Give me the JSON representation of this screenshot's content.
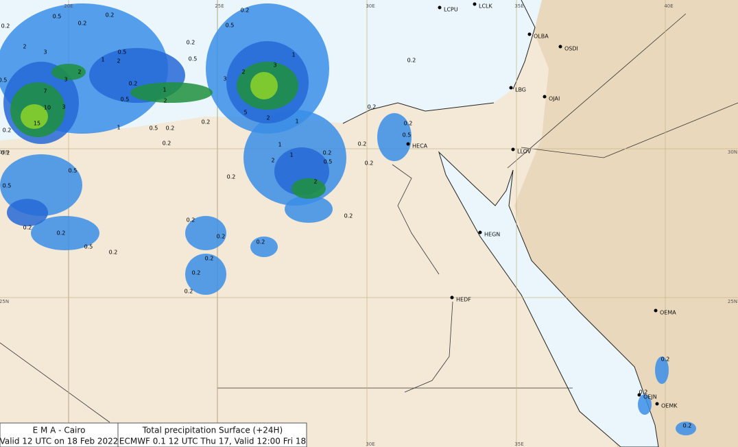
{
  "footer": {
    "left": [
      "E M A  -  Cairo",
      "Valid 12 UTC on 18 Feb 2022"
    ],
    "right": [
      "Total precipitation  Surface (+24H)",
      "ECMWF 0.1 12 UTC Thu 17, Valid 12:00 Fri 18"
    ]
  },
  "grid_labels": [
    "20E",
    "25E",
    "30E",
    "35E",
    "40E",
    "30N",
    "30N",
    "25N",
    "25N",
    "30E",
    "35E"
  ],
  "stations": [
    "LCPU",
    "LCLK",
    "OLBA",
    "OSDI",
    "LBG",
    "OJAI",
    "HECA",
    "LLOV",
    "HEGN",
    "HEDF",
    "OEMA",
    "OEJN",
    "OEMK"
  ],
  "precip_labels": [
    "0.5",
    "0.2",
    "0.2",
    "0.2",
    "0.5",
    "0.2",
    "0.2",
    "2",
    "3",
    "0.5",
    "2",
    "1",
    "0.5",
    "1",
    "3",
    "2",
    "3",
    "0.5",
    "0.2",
    "1",
    "0.5",
    "2",
    "7",
    "10",
    "3",
    "15",
    "3",
    "2",
    "5",
    "2",
    "1",
    "0.2",
    "1",
    "0.5",
    "0.2",
    "0.2",
    "0.2",
    "1",
    "1",
    "0.2",
    "0.5",
    "2",
    "2",
    "0.2",
    "0.2",
    "0.5",
    "0.5",
    "0.2",
    "0.2",
    "0.5",
    "0.2",
    "0.2",
    "0.2",
    "0.2",
    "0.2",
    "0.2",
    "0.2",
    "0.2",
    "0.2",
    "0.2",
    "0.2",
    "0.5",
    "0.2",
    "0.2",
    "0.2",
    "0.2",
    "0.2"
  ]
}
